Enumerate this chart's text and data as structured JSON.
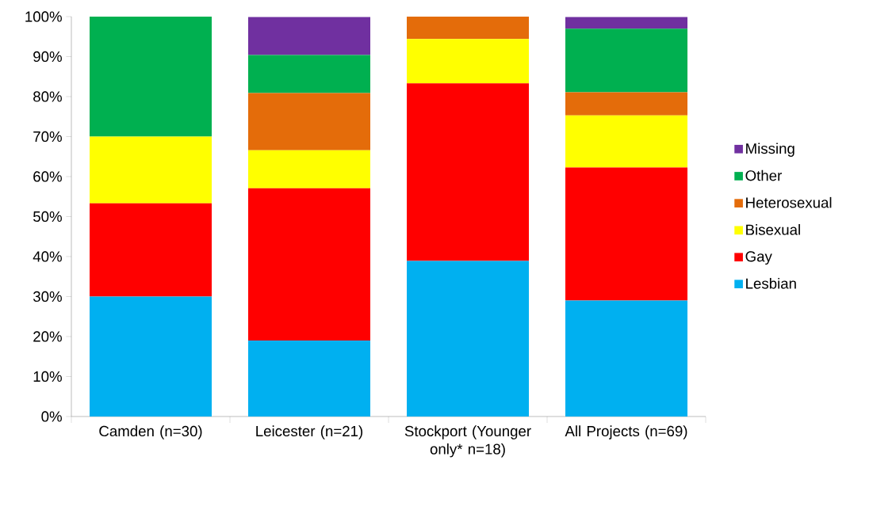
{
  "chart_data": {
    "type": "bar",
    "stacked": true,
    "categories": [
      "Camden (n=30)",
      "Leicester (n=21)",
      "Stockport (Younger only* n=18)",
      "All Projects (n=69)"
    ],
    "series": [
      {
        "name": "Lesbian",
        "color": "#00b0f0",
        "values": [
          30,
          19,
          38.9,
          29
        ]
      },
      {
        "name": "Gay",
        "color": "#ff0000",
        "values": [
          23.3,
          38.1,
          44.4,
          33.3
        ]
      },
      {
        "name": "Bisexual",
        "color": "#ffff00",
        "values": [
          16.7,
          9.5,
          11.1,
          13
        ]
      },
      {
        "name": "Heterosexual",
        "color": "#e46c0a",
        "values": [
          0,
          14.3,
          5.6,
          5.8
        ]
      },
      {
        "name": "Other",
        "color": "#00b050",
        "values": [
          30,
          9.5,
          0,
          15.9
        ]
      },
      {
        "name": "Missing",
        "color": "#7030a0",
        "values": [
          0,
          9.5,
          0,
          2.9
        ]
      }
    ],
    "ylim": [
      0,
      100
    ],
    "yticks": [
      {
        "value": 0,
        "label": "0%"
      },
      {
        "value": 10,
        "label": "10%"
      },
      {
        "value": 20,
        "label": "20%"
      },
      {
        "value": 30,
        "label": "30%"
      },
      {
        "value": 40,
        "label": "40%"
      },
      {
        "value": 50,
        "label": "50%"
      },
      {
        "value": 60,
        "label": "60%"
      },
      {
        "value": 70,
        "label": "70%"
      },
      {
        "value": 80,
        "label": "80%"
      },
      {
        "value": 90,
        "label": "90%"
      },
      {
        "value": 100,
        "label": "100%"
      }
    ],
    "grid": false,
    "legend": "right"
  }
}
